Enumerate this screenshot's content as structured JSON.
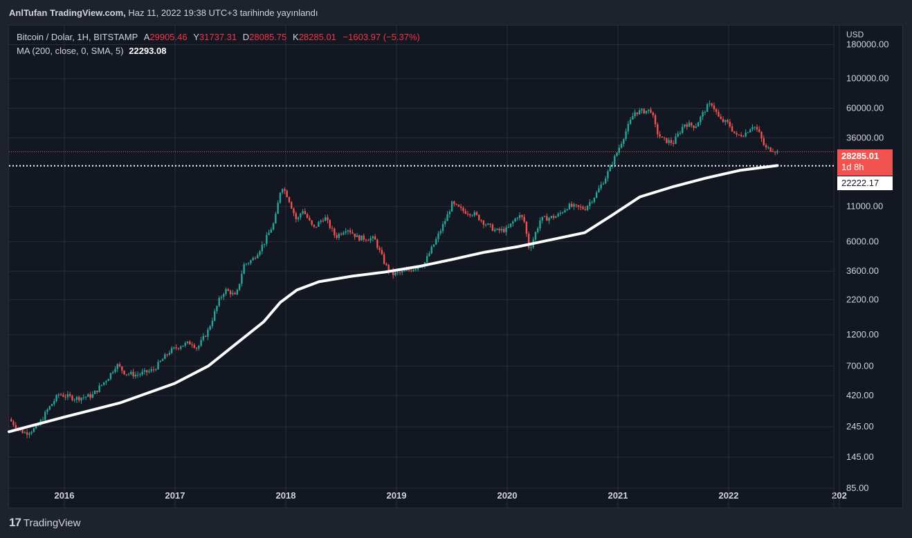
{
  "header": {
    "author": "AnlTufan",
    "publisher": "TradingView.com,",
    "date_text": "Haz 11, 2022 19:38 UTC+3 tarihinde yayınlandı"
  },
  "legend": {
    "symbol": "Bitcoin / Dolar, 1H, BITSTAMP",
    "open_label": "A",
    "open_value": "29905.46",
    "high_label": "Y",
    "high_value": "31737.31",
    "low_label": "D",
    "low_value": "28085.75",
    "close_label": "K",
    "close_value": "28285.01",
    "change": "−1603.97 (−5.37%)",
    "ma_label": "MA (200, close, 0, SMA, 5)",
    "ma_value": "22293.08"
  },
  "price_axis": {
    "currency": "USD",
    "labels": [
      "180000.00",
      "100000.00",
      "60000.00",
      "36000.00",
      "11000.00",
      "6000.00",
      "3600.00",
      "2200.00",
      "1200.00",
      "700.00",
      "420.00",
      "245.00",
      "145.00",
      "85.00"
    ],
    "last_price_tag": "28285.01",
    "countdown": "1d 8h",
    "ma_tag": "22222.17"
  },
  "time_axis": {
    "labels": [
      "2016",
      "2017",
      "2018",
      "2019",
      "2020",
      "2021",
      "2022",
      "202"
    ]
  },
  "footer": {
    "brand": "TradingView"
  },
  "colors": {
    "background": "#131722",
    "up": "#26a69a",
    "down": "#ef5350",
    "ma": "#ffffff",
    "grid": "#2a2e39",
    "support_line": "#ffffff"
  },
  "chart_data": {
    "type": "candlestick",
    "scale": "log",
    "ylim": [
      60,
      250000
    ],
    "xlim": [
      2015.5,
      2022.95
    ],
    "support_level": 22222.17,
    "close_series": [
      {
        "x": 2015.5,
        "y": 280
      },
      {
        "x": 2015.6,
        "y": 230
      },
      {
        "x": 2015.65,
        "y": 220
      },
      {
        "x": 2015.75,
        "y": 240
      },
      {
        "x": 2015.85,
        "y": 330
      },
      {
        "x": 2015.95,
        "y": 430
      },
      {
        "x": 2016.1,
        "y": 400
      },
      {
        "x": 2016.25,
        "y": 420
      },
      {
        "x": 2016.4,
        "y": 580
      },
      {
        "x": 2016.47,
        "y": 720
      },
      {
        "x": 2016.55,
        "y": 620
      },
      {
        "x": 2016.65,
        "y": 600
      },
      {
        "x": 2016.8,
        "y": 650
      },
      {
        "x": 2016.95,
        "y": 900
      },
      {
        "x": 2017.05,
        "y": 1000
      },
      {
        "x": 2017.15,
        "y": 1050
      },
      {
        "x": 2017.2,
        "y": 950
      },
      {
        "x": 2017.3,
        "y": 1300
      },
      {
        "x": 2017.4,
        "y": 2200
      },
      {
        "x": 2017.45,
        "y": 2600
      },
      {
        "x": 2017.5,
        "y": 2500
      },
      {
        "x": 2017.55,
        "y": 2300
      },
      {
        "x": 2017.62,
        "y": 4000
      },
      {
        "x": 2017.7,
        "y": 4400
      },
      {
        "x": 2017.8,
        "y": 5800
      },
      {
        "x": 2017.9,
        "y": 8500
      },
      {
        "x": 2017.96,
        "y": 16000
      },
      {
        "x": 2018.02,
        "y": 13000
      },
      {
        "x": 2018.1,
        "y": 8500
      },
      {
        "x": 2018.15,
        "y": 10500
      },
      {
        "x": 2018.25,
        "y": 7500
      },
      {
        "x": 2018.35,
        "y": 9200
      },
      {
        "x": 2018.45,
        "y": 6500
      },
      {
        "x": 2018.55,
        "y": 7600
      },
      {
        "x": 2018.65,
        "y": 6400
      },
      {
        "x": 2018.8,
        "y": 6300
      },
      {
        "x": 2018.9,
        "y": 4000
      },
      {
        "x": 2018.96,
        "y": 3400
      },
      {
        "x": 2019.1,
        "y": 3600
      },
      {
        "x": 2019.25,
        "y": 4100
      },
      {
        "x": 2019.35,
        "y": 6000
      },
      {
        "x": 2019.45,
        "y": 9000
      },
      {
        "x": 2019.5,
        "y": 11500
      },
      {
        "x": 2019.6,
        "y": 10200
      },
      {
        "x": 2019.7,
        "y": 9700
      },
      {
        "x": 2019.8,
        "y": 8200
      },
      {
        "x": 2019.9,
        "y": 7200
      },
      {
        "x": 2020.0,
        "y": 7400
      },
      {
        "x": 2020.1,
        "y": 9500
      },
      {
        "x": 2020.15,
        "y": 8800
      },
      {
        "x": 2020.2,
        "y": 5200
      },
      {
        "x": 2020.3,
        "y": 8800
      },
      {
        "x": 2020.45,
        "y": 9300
      },
      {
        "x": 2020.55,
        "y": 11100
      },
      {
        "x": 2020.7,
        "y": 10600
      },
      {
        "x": 2020.8,
        "y": 13500
      },
      {
        "x": 2020.9,
        "y": 19000
      },
      {
        "x": 2021.0,
        "y": 29000
      },
      {
        "x": 2021.07,
        "y": 40000
      },
      {
        "x": 2021.15,
        "y": 56000
      },
      {
        "x": 2021.3,
        "y": 58000
      },
      {
        "x": 2021.35,
        "y": 40000
      },
      {
        "x": 2021.4,
        "y": 35000
      },
      {
        "x": 2021.5,
        "y": 33000
      },
      {
        "x": 2021.6,
        "y": 46000
      },
      {
        "x": 2021.7,
        "y": 44000
      },
      {
        "x": 2021.8,
        "y": 61000
      },
      {
        "x": 2021.85,
        "y": 65000
      },
      {
        "x": 2021.92,
        "y": 49000
      },
      {
        "x": 2022.0,
        "y": 46000
      },
      {
        "x": 2022.07,
        "y": 37000
      },
      {
        "x": 2022.15,
        "y": 39000
      },
      {
        "x": 2022.22,
        "y": 45000
      },
      {
        "x": 2022.27,
        "y": 40000
      },
      {
        "x": 2022.33,
        "y": 30000
      },
      {
        "x": 2022.4,
        "y": 29500
      },
      {
        "x": 2022.44,
        "y": 28285
      }
    ],
    "ma_series": [
      {
        "x": 2015.5,
        "y": 225
      },
      {
        "x": 2016.0,
        "y": 290
      },
      {
        "x": 2016.5,
        "y": 370
      },
      {
        "x": 2017.0,
        "y": 520
      },
      {
        "x": 2017.3,
        "y": 700
      },
      {
        "x": 2017.5,
        "y": 950
      },
      {
        "x": 2017.8,
        "y": 1500
      },
      {
        "x": 2017.95,
        "y": 2100
      },
      {
        "x": 2018.1,
        "y": 2600
      },
      {
        "x": 2018.3,
        "y": 3000
      },
      {
        "x": 2018.6,
        "y": 3300
      },
      {
        "x": 2018.9,
        "y": 3550
      },
      {
        "x": 2019.2,
        "y": 3900
      },
      {
        "x": 2019.5,
        "y": 4400
      },
      {
        "x": 2019.8,
        "y": 5000
      },
      {
        "x": 2020.1,
        "y": 5500
      },
      {
        "x": 2020.4,
        "y": 6200
      },
      {
        "x": 2020.7,
        "y": 7000
      },
      {
        "x": 2020.95,
        "y": 9500
      },
      {
        "x": 2021.2,
        "y": 13000
      },
      {
        "x": 2021.5,
        "y": 15500
      },
      {
        "x": 2021.8,
        "y": 18000
      },
      {
        "x": 2022.1,
        "y": 20500
      },
      {
        "x": 2022.44,
        "y": 22293
      }
    ]
  }
}
